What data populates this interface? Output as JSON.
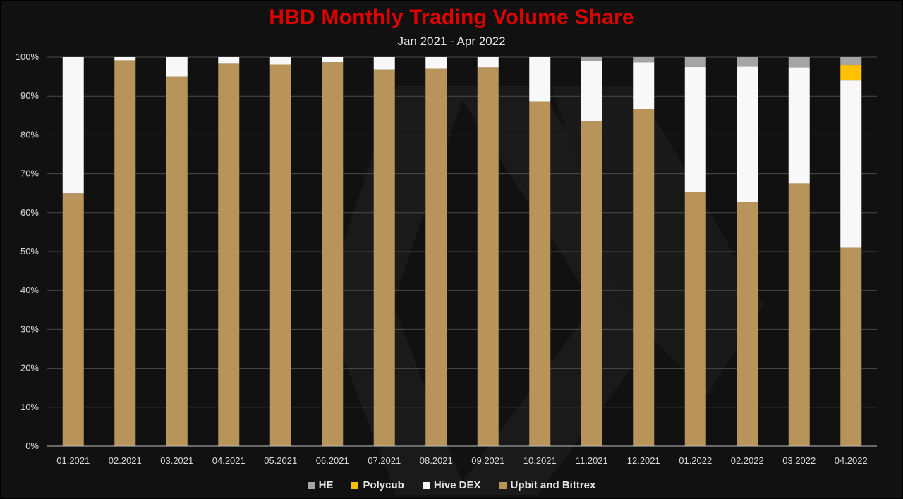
{
  "chart_data": {
    "type": "bar",
    "stacked": true,
    "title": "HBD Monthly Trading Volume Share",
    "subtitle": "Jan 2021 - Apr 2022",
    "xlabel": "",
    "ylabel": "",
    "ylim": [
      0,
      100
    ],
    "yticks": [
      "0%",
      "10%",
      "20%",
      "30%",
      "40%",
      "50%",
      "60%",
      "70%",
      "80%",
      "90%",
      "100%"
    ],
    "grid": true,
    "legend_position": "bottom",
    "categories": [
      "01.2021",
      "02.2021",
      "03.2021",
      "04.2021",
      "05.2021",
      "06.2021",
      "07.2021",
      "08.2021",
      "09.2021",
      "10.2021",
      "11.2021",
      "12.2021",
      "01.2022",
      "02.2022",
      "03.2022",
      "04.2022"
    ],
    "series": [
      {
        "name": "Upbit and Bittrex",
        "color": "#b8945a",
        "values": [
          65,
          99.2,
          95,
          98.3,
          98.1,
          98.7,
          96.8,
          97,
          97.4,
          88.5,
          83.5,
          86.6,
          65.3,
          62.8,
          67.5,
          51
        ]
      },
      {
        "name": "Hive DEX",
        "color": "#f8f8f8",
        "values": [
          35,
          0.8,
          5,
          1.7,
          1.9,
          1.3,
          3.2,
          3,
          2.6,
          11.5,
          15.6,
          12.1,
          32.2,
          34.8,
          29.9,
          43
        ]
      },
      {
        "name": "Polycub",
        "color": "#ffc000",
        "values": [
          0,
          0,
          0,
          0,
          0,
          0,
          0,
          0,
          0,
          0,
          0,
          0,
          0,
          0,
          0,
          4
        ]
      },
      {
        "name": "HE",
        "color": "#a5a5a5",
        "values": [
          0,
          0,
          0,
          0,
          0,
          0,
          0,
          0,
          0,
          0,
          0.9,
          1.3,
          2.5,
          2.4,
          2.6,
          2
        ]
      }
    ],
    "legend_order": [
      "HE",
      "Polycub",
      "Hive DEX",
      "Upbit and Bittrex"
    ]
  },
  "legend": [
    {
      "label": "HE",
      "color": "#a5a5a5"
    },
    {
      "label": "Polycub",
      "color": "#ffc000"
    },
    {
      "label": "Hive DEX",
      "color": "#f8f8f8"
    },
    {
      "label": "Upbit and Bittrex",
      "color": "#b8945a"
    }
  ]
}
